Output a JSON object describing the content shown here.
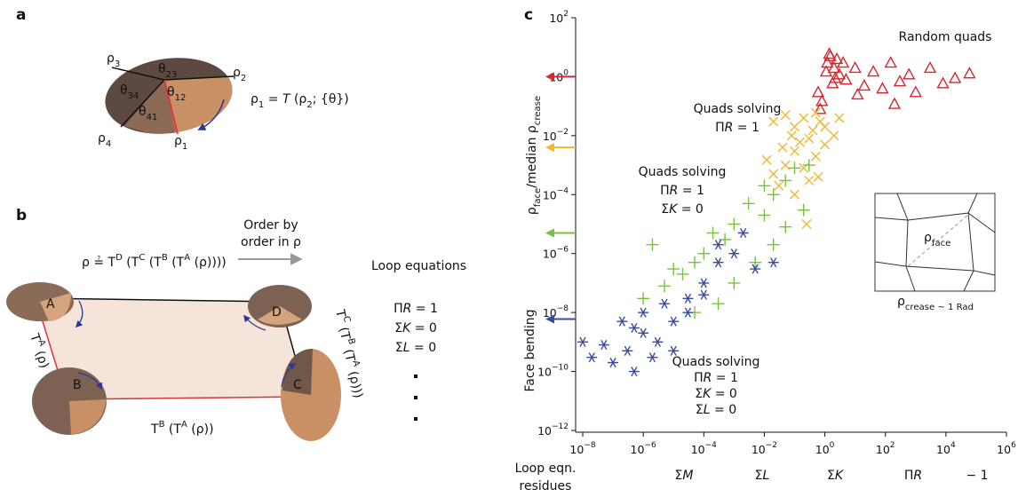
{
  "figure": {
    "panel_letters": [
      "a",
      "b",
      "c"
    ]
  },
  "panel_a": {
    "labels": [
      [
        "ρ",
        {
          "sub": "3"
        }
      ],
      [
        "θ",
        {
          "sub": "23"
        }
      ],
      [
        "ρ",
        {
          "sub": "2"
        }
      ],
      [
        "θ",
        {
          "sub": "34"
        }
      ],
      [
        "θ",
        {
          "sub": "12"
        }
      ],
      [
        "θ",
        {
          "sub": "41"
        }
      ],
      [
        "ρ",
        {
          "sub": "4"
        }
      ],
      [
        "ρ",
        {
          "sub": "1"
        }
      ]
    ],
    "equation": [
      "ρ",
      {
        "sub": "1"
      },
      " = ",
      {
        "i": "T"
      },
      " (ρ",
      {
        "sub": "2"
      },
      "; {θ})"
    ]
  },
  "panel_b": {
    "nodes": [
      "A",
      "B",
      "C",
      "D"
    ],
    "top_equation": [
      "ρ ≟ T",
      {
        "sup": "D"
      },
      " (T",
      {
        "sup": "C"
      },
      " (T",
      {
        "sup": "B"
      },
      " (T",
      {
        "sup": "A"
      },
      " (ρ))))"
    ],
    "edge_labels": [
      [
        "T",
        {
          "sup": "A"
        },
        " (ρ)"
      ],
      [
        "T",
        {
          "sup": "B"
        },
        " (T",
        {
          "sup": "A"
        },
        " (ρ))"
      ],
      [
        "T",
        {
          "sup": "C"
        },
        " (T",
        {
          "sup": "B"
        },
        " (T",
        {
          "sup": "A"
        },
        " (ρ)))"
      ]
    ],
    "order_note": [
      "Order by",
      "order in ρ"
    ],
    "loop_title": "Loop equations",
    "loop_equations": [
      {
        "text": [
          "Π",
          {
            "i": "R"
          },
          " = 1"
        ],
        "color": "#ef7d2d"
      },
      {
        "text": [
          "Σ",
          {
            "i": "K"
          },
          " = 0"
        ],
        "color": "#6cbd45"
      },
      {
        "text": [
          "Σ",
          {
            "i": "L"
          },
          " = 0"
        ],
        "color": "#3b4ba0"
      }
    ]
  },
  "chart_data": {
    "type": "scatter",
    "xscale": "log",
    "yscale": "log",
    "xlim": [
      1e-08,
      1000000.0
    ],
    "ylim": [
      1e-12,
      100
    ],
    "xticks": [
      {
        "value": 1e-08,
        "label": [
          "10",
          {
            "sup": "−8"
          }
        ]
      },
      {
        "value": 1e-06,
        "label": [
          "10",
          {
            "sup": "−6"
          }
        ]
      },
      {
        "value": 0.0001,
        "label": [
          "10",
          {
            "sup": "−4"
          }
        ]
      },
      {
        "value": 0.01,
        "label": [
          "10",
          {
            "sup": "−2"
          }
        ]
      },
      {
        "value": 1,
        "label": [
          "10",
          {
            "sup": "0"
          }
        ]
      },
      {
        "value": 100,
        "label": [
          "10",
          {
            "sup": "2"
          }
        ]
      },
      {
        "value": 10000,
        "label": [
          "10",
          {
            "sup": "4"
          }
        ]
      },
      {
        "value": 1000000,
        "label": [
          "10",
          {
            "sup": "6"
          }
        ]
      }
    ],
    "yticks": [
      {
        "value": 100,
        "label": [
          "10",
          {
            "sup": "2"
          }
        ]
      },
      {
        "value": 1,
        "label": [
          "10",
          {
            "sup": "0"
          }
        ]
      },
      {
        "value": 0.01,
        "label": [
          "10",
          {
            "sup": "−2"
          }
        ]
      },
      {
        "value": 0.0001,
        "label": [
          "10",
          {
            "sup": "−4"
          }
        ]
      },
      {
        "value": 1e-06,
        "label": [
          "10",
          {
            "sup": "−6"
          }
        ]
      },
      {
        "value": 1e-08,
        "label": [
          "10",
          {
            "sup": "−8"
          }
        ]
      },
      {
        "value": 1e-10,
        "label": [
          "10",
          {
            "sup": "−10"
          }
        ]
      },
      {
        "value": 1e-12,
        "label": [
          "10",
          {
            "sup": "−12"
          }
        ]
      }
    ],
    "ylabel": [
      "Face bending"
    ],
    "ylabel2": [
      "ρ",
      {
        "sub": "face"
      },
      "/median ρ",
      {
        "sub": "crease"
      }
    ],
    "xlabel": [
      "Loop eqn.",
      "residues"
    ],
    "x_residue_labels": [
      {
        "text": [
          "Σ",
          {
            "i": "M"
          }
        ],
        "color": "#3b4ba0"
      },
      {
        "text": [
          "Σ",
          {
            "i": "L"
          }
        ],
        "color": "#3f8a3a"
      },
      {
        "text": [
          "Σ",
          {
            "i": "K"
          }
        ],
        "color": "#ef7d2d"
      },
      {
        "text": [
          "Π",
          {
            "i": "R"
          }
        ],
        "color": "#d6262e"
      },
      {
        "text": [
          "− 1"
        ],
        "color": "#d6262e"
      }
    ],
    "median_arrows": {
      "values": [
        1,
        0.004,
        5e-06,
        6e-09
      ],
      "colors": [
        "#d6262e",
        "#f2b631",
        "#7ac143",
        "#3b4ba0"
      ]
    },
    "inset": {
      "face_label": [
        "ρ",
        {
          "sub": "face"
        }
      ],
      "crease_label": [
        "ρ",
        {
          "sub": "crease ~ 1 Rad"
        }
      ]
    },
    "series": [
      {
        "marker": "triangle",
        "color": "#d6262e",
        "label_color": "#d6262e",
        "label": [
          [
            "Random quads"
          ]
        ],
        "x": [
          1.2,
          1.5,
          2,
          1.1,
          2.5,
          3,
          0.6,
          0.8,
          1.8,
          5,
          10,
          20,
          40,
          80,
          150,
          300,
          600,
          1000,
          3000,
          8000,
          20000,
          60000,
          1.4,
          2.2,
          12,
          200,
          4,
          0.7
        ],
        "values": [
          3,
          5,
          2,
          1.5,
          4,
          1.2,
          0.3,
          0.15,
          0.6,
          0.8,
          2,
          0.5,
          1.5,
          0.4,
          3,
          0.7,
          1.2,
          0.3,
          2,
          0.6,
          0.9,
          1.3,
          6,
          0.9,
          0.25,
          0.12,
          3,
          0.08
        ]
      },
      {
        "marker": "cross",
        "color": "#f2b631",
        "label_color": "#ef9a2d",
        "label": [
          [
            "Quads solving"
          ],
          [
            "Π",
            {
              "i": "R"
            },
            " = 1"
          ]
        ],
        "x": [
          0.02,
          0.05,
          0.1,
          0.2,
          0.5,
          1,
          0.3,
          0.1,
          0.05,
          0.02,
          0.2,
          0.5,
          1,
          2,
          0.03,
          0.1,
          0.3,
          0.6,
          0.08,
          0.15,
          0.4,
          0.7,
          0.04,
          0.25,
          3,
          0.012
        ],
        "values": [
          0.03,
          0.05,
          0.02,
          0.04,
          0.06,
          0.02,
          0.008,
          0.003,
          0.001,
          0.0005,
          0.0008,
          0.002,
          0.005,
          0.01,
          0.0002,
          0.0001,
          0.0003,
          0.0004,
          0.01,
          0.006,
          0.015,
          0.03,
          0.004,
          1e-05,
          0.04,
          0.0015
        ]
      },
      {
        "marker": "plus",
        "color": "#7ac143",
        "label_color": "#3f8a3a",
        "label": [
          [
            "Quads solving"
          ],
          [
            "Π",
            {
              "i": "R"
            },
            " = 1"
          ],
          [
            "Σ",
            {
              "i": "K"
            },
            " = 0"
          ]
        ],
        "x": [
          0.1,
          0.05,
          0.02,
          0.01,
          0.003,
          0.001,
          0.0005,
          0.0002,
          0.0001,
          5e-05,
          2e-05,
          1e-05,
          5e-06,
          2e-06,
          1e-06,
          0.2,
          0.05,
          0.02,
          0.005,
          0.001,
          0.0003,
          5e-05,
          0.3,
          0.01
        ],
        "values": [
          0.0008,
          0.0003,
          0.0001,
          2e-05,
          5e-05,
          1e-05,
          3e-06,
          5e-06,
          1e-06,
          5e-07,
          2e-07,
          3e-07,
          8e-08,
          2e-06,
          3e-08,
          3e-05,
          8e-06,
          2e-06,
          5e-07,
          1e-07,
          2e-08,
          1e-08,
          0.001,
          0.0002
        ]
      },
      {
        "marker": "asterisk",
        "color": "#3b4ba0",
        "label_color": "#3b4ba0",
        "label": [
          [
            "Quads solving"
          ],
          [
            "Π",
            {
              "i": "R"
            },
            " = 1"
          ],
          [
            "Σ",
            {
              "i": "K"
            },
            " = 0"
          ],
          [
            "Σ",
            {
              "i": "L"
            },
            " = 0"
          ]
        ],
        "x": [
          1e-08,
          2e-08,
          5e-08,
          1e-07,
          3e-07,
          5e-07,
          2e-07,
          1e-06,
          3e-06,
          1e-05,
          3e-05,
          0.0001,
          0.0003,
          0.001,
          0.002,
          0.005,
          0.0001,
          3e-05,
          1e-06,
          5e-07,
          2e-06,
          5e-06,
          0.02,
          0.0003,
          1e-05
        ],
        "values": [
          1e-09,
          3e-10,
          8e-10,
          2e-10,
          5e-10,
          1e-10,
          5e-09,
          2e-09,
          1e-09,
          5e-09,
          3e-08,
          1e-07,
          5e-07,
          1e-06,
          5e-06,
          3e-07,
          4e-08,
          1e-08,
          1e-08,
          3e-09,
          3e-10,
          2e-08,
          5e-07,
          2e-06,
          5e-10
        ]
      }
    ]
  }
}
